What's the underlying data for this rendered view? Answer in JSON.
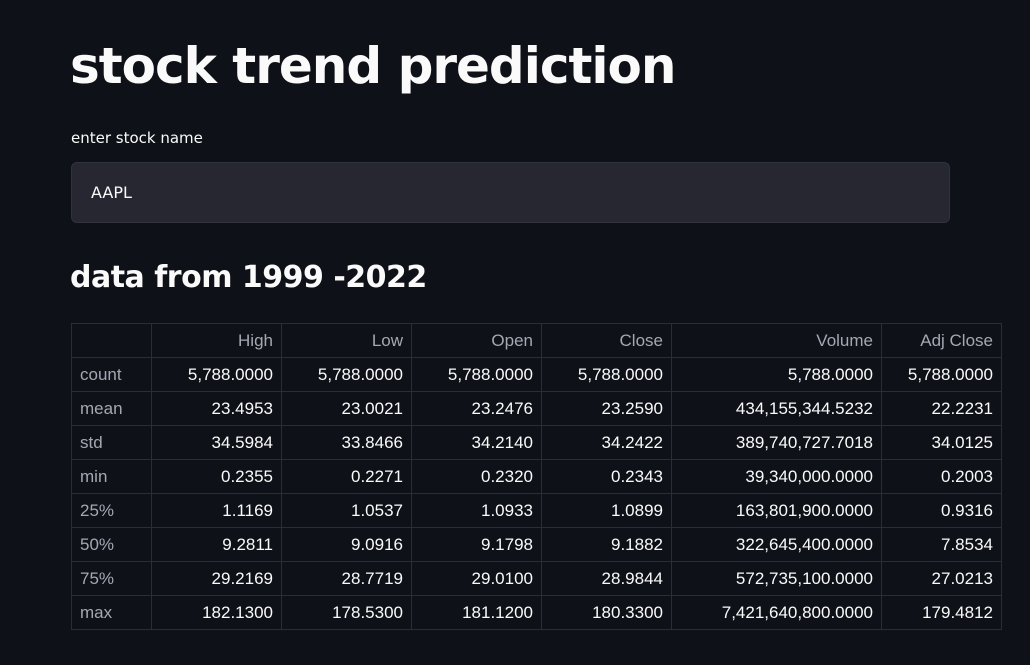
{
  "page": {
    "title": "stock trend prediction",
    "input_label": "enter stock name",
    "input_value": "AAPL",
    "subheader": "data from 1999 -2022"
  },
  "table": {
    "columns": [
      "",
      "High",
      "Low",
      "Open",
      "Close",
      "Volume",
      "Adj Close"
    ],
    "rows": [
      {
        "label": "count",
        "values": [
          "5,788.0000",
          "5,788.0000",
          "5,788.0000",
          "5,788.0000",
          "5,788.0000",
          "5,788.0000"
        ]
      },
      {
        "label": "mean",
        "values": [
          "23.4953",
          "23.0021",
          "23.2476",
          "23.2590",
          "434,155,344.5232",
          "22.2231"
        ]
      },
      {
        "label": "std",
        "values": [
          "34.5984",
          "33.8466",
          "34.2140",
          "34.2422",
          "389,740,727.7018",
          "34.0125"
        ]
      },
      {
        "label": "min",
        "values": [
          "0.2355",
          "0.2271",
          "0.2320",
          "0.2343",
          "39,340,000.0000",
          "0.2003"
        ]
      },
      {
        "label": "25%",
        "values": [
          "1.1169",
          "1.0537",
          "1.0933",
          "1.0899",
          "163,801,900.0000",
          "0.9316"
        ]
      },
      {
        "label": "50%",
        "values": [
          "9.2811",
          "9.0916",
          "9.1798",
          "9.1882",
          "322,645,400.0000",
          "7.8534"
        ]
      },
      {
        "label": "75%",
        "values": [
          "29.2169",
          "28.7719",
          "29.0100",
          "28.9844",
          "572,735,100.0000",
          "27.0213"
        ]
      },
      {
        "label": "max",
        "values": [
          "182.1300",
          "178.5300",
          "181.1200",
          "180.3300",
          "7,421,640,800.0000",
          "179.4812"
        ]
      }
    ]
  }
}
